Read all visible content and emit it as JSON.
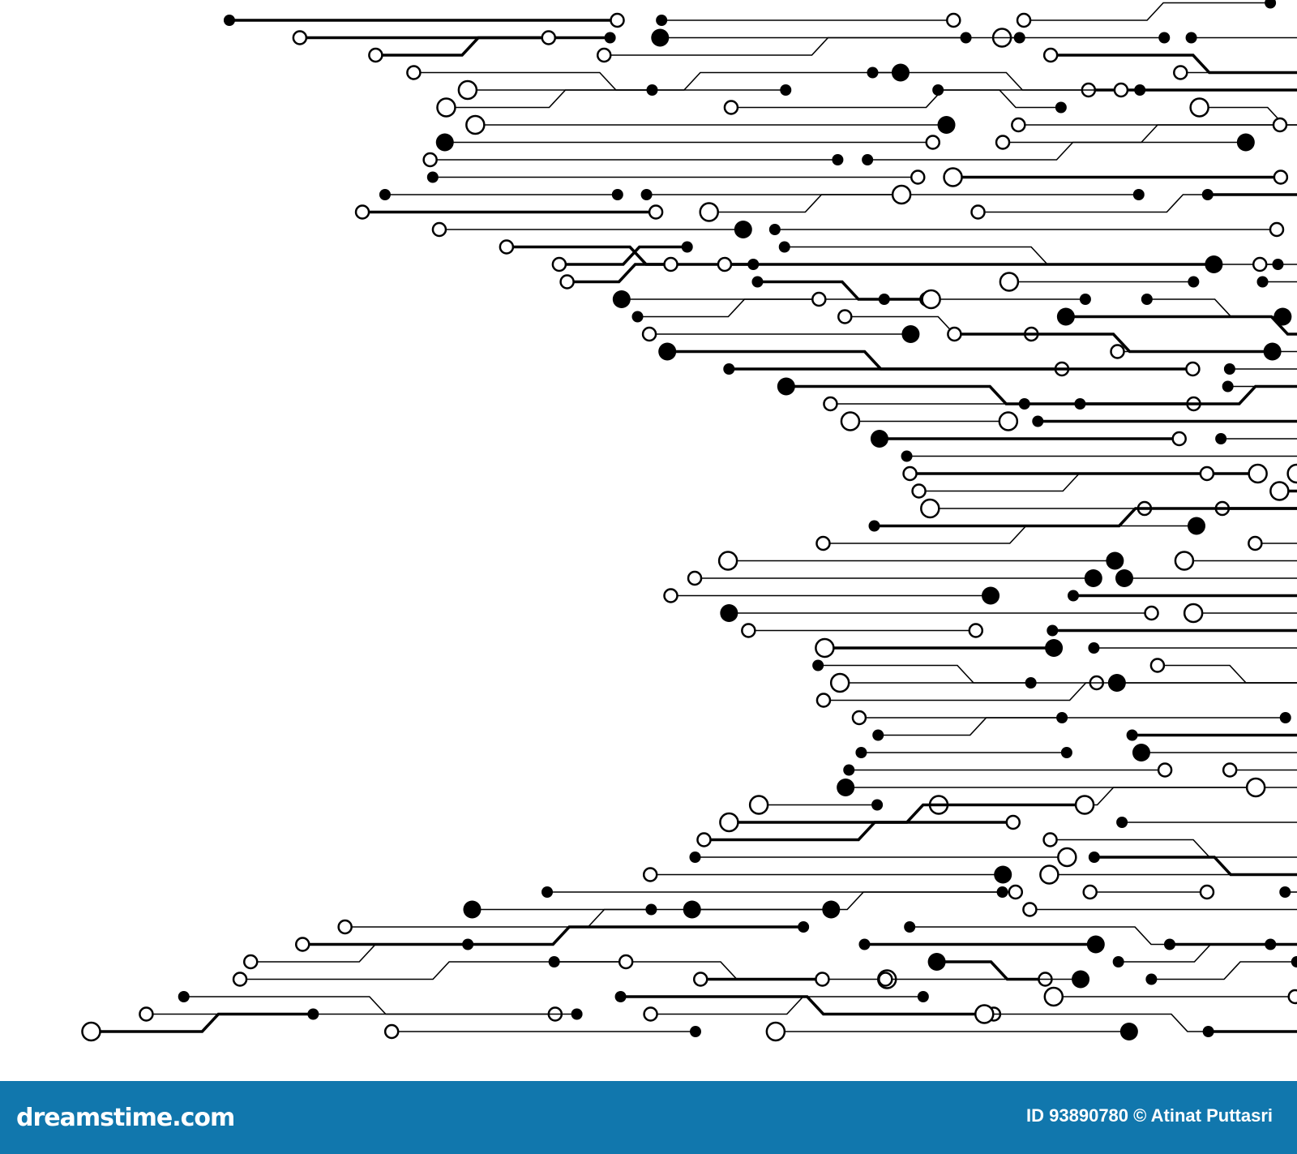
{
  "footer": {
    "logo": "dreamstime.com",
    "credit": "ID 93890780 © Atinat Puttasri",
    "background_color": "#1177ad"
  },
  "illustration": {
    "subject": "circuit-board-traces",
    "trace_color": "#000000",
    "background_color": "#ffffff"
  }
}
